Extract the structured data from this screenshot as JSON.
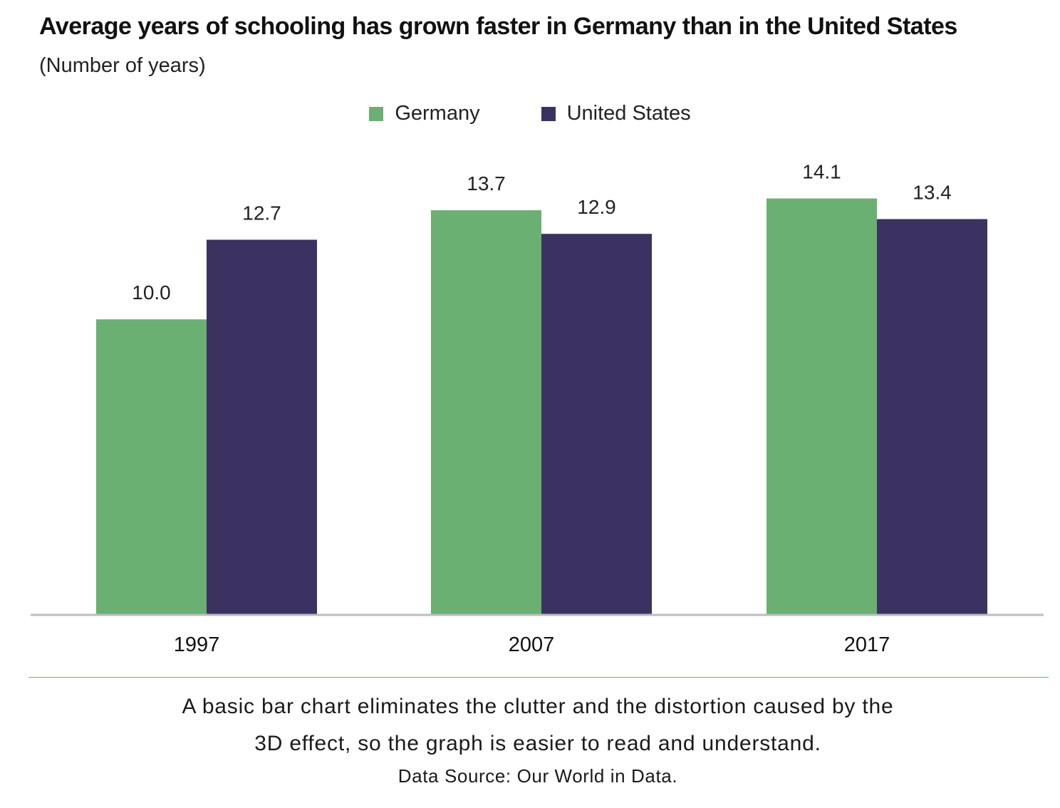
{
  "chart_data": {
    "type": "bar",
    "title": "Average years of schooling has grown faster in Germany than in the United States",
    "subtitle": "(Number of years)",
    "categories": [
      "1997",
      "2007",
      "2017"
    ],
    "series": [
      {
        "name": "Germany",
        "color": "#6ab073",
        "values": [
          10.0,
          13.7,
          14.1
        ],
        "labels": [
          "10.0",
          "13.7",
          "14.1"
        ]
      },
      {
        "name": "United States",
        "color": "#3b3262",
        "values": [
          12.7,
          12.9,
          13.4
        ],
        "labels": [
          "12.7",
          "12.9",
          "13.4"
        ]
      }
    ],
    "xlabel": "",
    "ylabel": "",
    "ylim": [
      0,
      15
    ],
    "grid": false,
    "legend_position": "top-center"
  },
  "caption": {
    "line1": "A basic bar chart eliminates the clutter and the distortion caused by the",
    "line2": "3D effect, so the graph is easier to read and understand."
  },
  "source": "Data Source: Our World in Data.",
  "colors": {
    "axis": "#bdbdbd",
    "divider": "#6ab47a"
  }
}
